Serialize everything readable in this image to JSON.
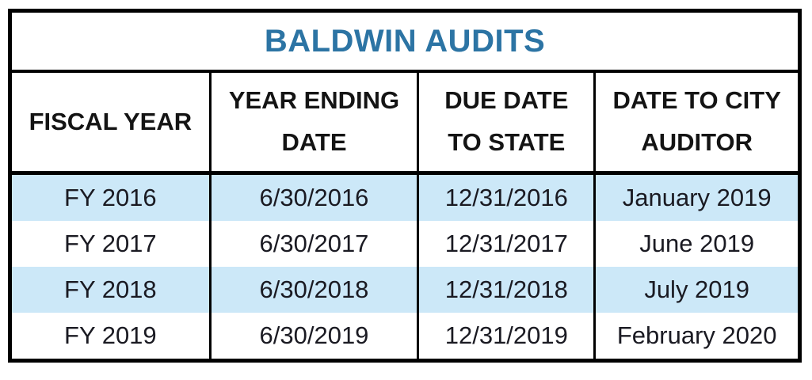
{
  "chart_data": {
    "type": "table",
    "title": "BALDWIN AUDITS",
    "columns": [
      "FISCAL YEAR",
      "YEAR ENDING\nDATE",
      "DUE DATE\nTO STATE",
      "DATE TO CITY\nAUDITOR"
    ],
    "rows": [
      [
        "FY 2016",
        "6/30/2016",
        "12/31/2016",
        "January 2019"
      ],
      [
        "FY 2017",
        "6/30/2017",
        "12/31/2017",
        "June 2019"
      ],
      [
        "FY 2018",
        "6/30/2018",
        "12/31/2018",
        "July 2019"
      ],
      [
        "FY 2019",
        "6/30/2019",
        "12/31/2019",
        "February 2020"
      ]
    ],
    "layout": {
      "banded_rows": "alternating, first data row shaded",
      "grid": "thick black outer border, black column separators, no horizontal lines between data rows",
      "legend": "none"
    },
    "colors": {
      "title_text": "#2C74A4",
      "header_text": "#141414",
      "body_text": "#1A1A22",
      "row_band": "#CCE8F8",
      "border": "#000000",
      "background": "#FFFFFF"
    }
  }
}
